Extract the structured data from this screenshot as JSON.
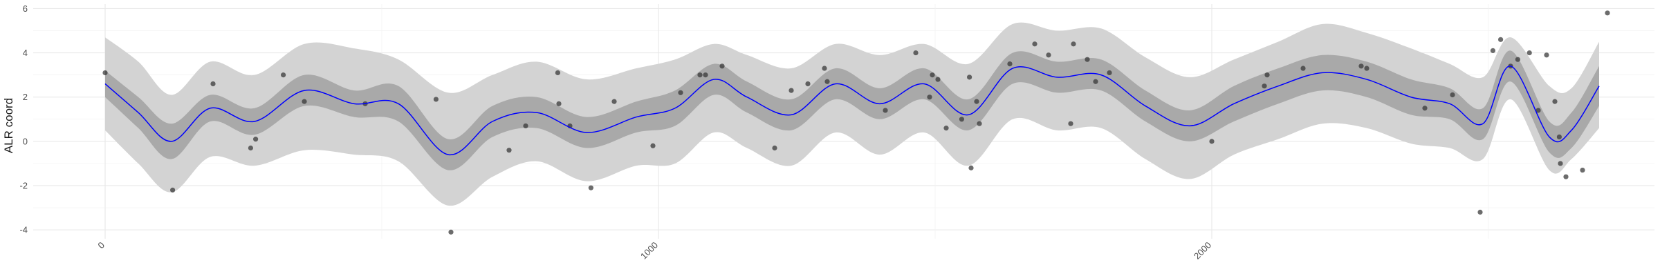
{
  "chart_data": {
    "type": "line",
    "title": "",
    "xlabel": "",
    "ylabel": "ALR coord",
    "xlim": [
      -130,
      2800
    ],
    "ylim": [
      -4.4,
      6.2
    ],
    "x_ticks": [
      0,
      1000,
      2000
    ],
    "y_ticks": [
      -4,
      -2,
      0,
      2,
      4,
      6
    ],
    "grid": true,
    "legend": "none",
    "colors": {
      "mean_line": "#0000ff",
      "inner_band": "#a9a9a9",
      "outer_band": "#d3d3d3",
      "points": "#333333"
    },
    "series": [
      {
        "kind": "mean",
        "x": [
          0,
          60,
          120,
          190,
          270,
          360,
          450,
          530,
          620,
          700,
          780,
          870,
          960,
          1030,
          1100,
          1160,
          1240,
          1320,
          1400,
          1480,
          1560,
          1640,
          1720,
          1800,
          1880,
          1960,
          2040,
          2120,
          2200,
          2280,
          2360,
          2430,
          2490,
          2540,
          2610,
          2650,
          2700
        ],
        "y": [
          2.6,
          1.3,
          0.0,
          1.5,
          0.9,
          2.3,
          1.7,
          1.7,
          -0.6,
          0.9,
          1.3,
          0.4,
          1.1,
          1.5,
          2.8,
          2.0,
          1.2,
          2.6,
          1.7,
          2.6,
          1.2,
          3.3,
          2.9,
          3.0,
          1.6,
          0.7,
          1.7,
          2.5,
          3.1,
          2.8,
          2.0,
          1.7,
          0.8,
          3.4,
          0.2,
          0.5,
          2.5
        ]
      },
      {
        "kind": "inner_band",
        "x": [
          0,
          60,
          120,
          190,
          270,
          360,
          450,
          530,
          620,
          700,
          780,
          870,
          960,
          1030,
          1100,
          1160,
          1240,
          1320,
          1400,
          1480,
          1560,
          1640,
          1720,
          1800,
          1880,
          1960,
          2040,
          2120,
          2200,
          2280,
          2360,
          2430,
          2490,
          2540,
          2610,
          2650,
          2700
        ],
        "lower": [
          2.0,
          0.6,
          -0.8,
          0.9,
          0.3,
          1.6,
          1.1,
          0.9,
          -1.3,
          0.2,
          0.6,
          -0.3,
          0.4,
          0.7,
          2.1,
          1.3,
          0.5,
          1.9,
          1.0,
          1.9,
          0.5,
          2.6,
          2.2,
          2.3,
          0.9,
          0.0,
          0.9,
          1.7,
          2.3,
          2.0,
          1.2,
          1.0,
          0.1,
          2.7,
          -0.5,
          -0.3,
          1.6
        ],
        "upper": [
          3.2,
          2.0,
          0.8,
          2.1,
          1.5,
          3.0,
          2.3,
          2.5,
          0.1,
          1.6,
          2.0,
          1.1,
          1.8,
          2.3,
          3.5,
          2.7,
          1.9,
          3.3,
          2.4,
          3.3,
          1.9,
          4.0,
          3.6,
          3.7,
          2.3,
          1.4,
          2.5,
          3.3,
          3.9,
          3.6,
          2.8,
          2.4,
          1.5,
          4.1,
          0.9,
          1.3,
          3.4
        ]
      },
      {
        "kind": "outer_band",
        "x": [
          0,
          60,
          120,
          190,
          270,
          360,
          450,
          530,
          620,
          700,
          780,
          870,
          960,
          1030,
          1100,
          1160,
          1240,
          1320,
          1400,
          1480,
          1560,
          1640,
          1720,
          1800,
          1880,
          1960,
          2040,
          2120,
          2200,
          2280,
          2360,
          2430,
          2490,
          2540,
          2610,
          2650,
          2700
        ],
        "lower": [
          0.5,
          -1.0,
          -2.3,
          -0.7,
          -1.1,
          -0.4,
          -0.6,
          -0.9,
          -2.9,
          -1.6,
          -0.9,
          -1.8,
          -1.1,
          -1.0,
          0.4,
          -0.3,
          -1.1,
          0.4,
          -0.6,
          0.4,
          -1.1,
          1.0,
          0.5,
          0.6,
          -0.8,
          -1.7,
          -0.6,
          0.1,
          0.8,
          0.6,
          -0.1,
          -0.3,
          -0.8,
          1.9,
          -1.3,
          -0.8,
          0.6
        ],
        "upper": [
          4.7,
          3.6,
          2.1,
          3.6,
          3.0,
          4.4,
          4.2,
          3.7,
          2.2,
          3.0,
          3.6,
          2.8,
          3.3,
          3.7,
          4.4,
          3.9,
          3.3,
          4.4,
          3.9,
          4.4,
          3.5,
          5.3,
          5.0,
          5.1,
          3.8,
          2.9,
          3.7,
          4.5,
          5.3,
          4.9,
          4.2,
          3.5,
          2.9,
          4.7,
          2.5,
          2.4,
          4.5
        ]
      }
    ],
    "points": {
      "x": [
        0,
        122,
        195,
        263,
        272,
        322,
        360,
        470,
        598,
        625,
        730,
        760,
        818,
        820,
        840,
        878,
        920,
        990,
        1040,
        1075,
        1085,
        1115,
        1210,
        1240,
        1270,
        1300,
        1305,
        1410,
        1465,
        1490,
        1495,
        1505,
        1520,
        1548,
        1562,
        1565,
        1575,
        1580,
        1635,
        1680,
        1705,
        1745,
        1750,
        1775,
        1790,
        1815,
        2000,
        2095,
        2100,
        2165,
        2270,
        2280,
        2385,
        2435,
        2485,
        2508,
        2522,
        2540,
        2553,
        2574,
        2590,
        2605,
        2620,
        2628,
        2630,
        2640,
        2670,
        2715
      ],
      "y": [
        3.1,
        -2.2,
        2.6,
        -0.3,
        0.1,
        3.0,
        1.8,
        1.7,
        1.9,
        -4.1,
        -0.4,
        0.7,
        3.1,
        1.7,
        0.7,
        -2.1,
        1.8,
        -0.2,
        2.2,
        3.0,
        3.0,
        3.4,
        -0.3,
        2.3,
        2.6,
        3.3,
        2.7,
        1.4,
        4.0,
        2.0,
        3.0,
        2.8,
        0.6,
        1.0,
        2.9,
        -1.2,
        1.8,
        0.8,
        3.5,
        4.4,
        3.9,
        0.8,
        4.4,
        3.7,
        2.7,
        3.1,
        0.0,
        2.5,
        3.0,
        3.3,
        3.4,
        3.3,
        1.5,
        2.1,
        -3.2,
        4.1,
        4.6,
        3.4,
        3.7,
        4.0,
        1.4,
        3.9,
        1.8,
        0.2,
        -1.0,
        -1.6,
        -1.3,
        5.8
      ]
    }
  }
}
